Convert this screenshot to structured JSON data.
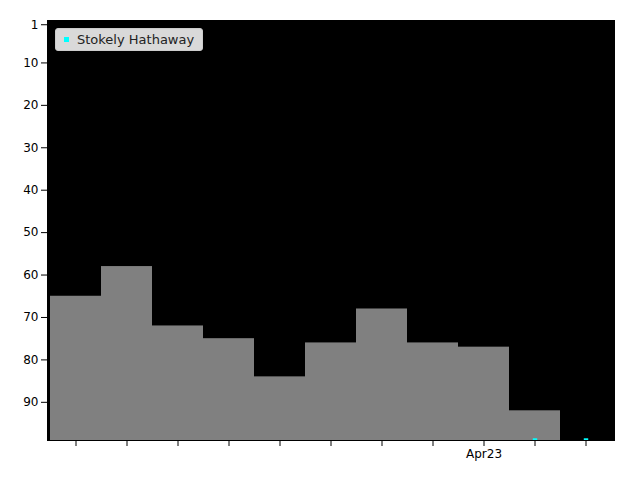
{
  "chart_data": {
    "type": "bar",
    "categories": [
      null,
      null,
      null,
      null,
      null,
      null,
      null,
      null,
      "Apr23",
      null,
      null
    ],
    "series": [
      {
        "type": "bar",
        "color": "#808080",
        "values": [
          65,
          58,
          72,
          75,
          84,
          76,
          68,
          76,
          77,
          92,
          null
        ]
      },
      {
        "name": "Stokely Hathaway",
        "type": "scatter",
        "marker": "square",
        "color": "#00ffff",
        "values": [
          null,
          null,
          null,
          null,
          null,
          null,
          null,
          null,
          null,
          99,
          99
        ]
      }
    ],
    "ylim": [
      99,
      0
    ],
    "yticks": [
      1,
      10,
      20,
      30,
      40,
      50,
      60,
      70,
      80,
      90
    ],
    "legend": "upper left"
  }
}
